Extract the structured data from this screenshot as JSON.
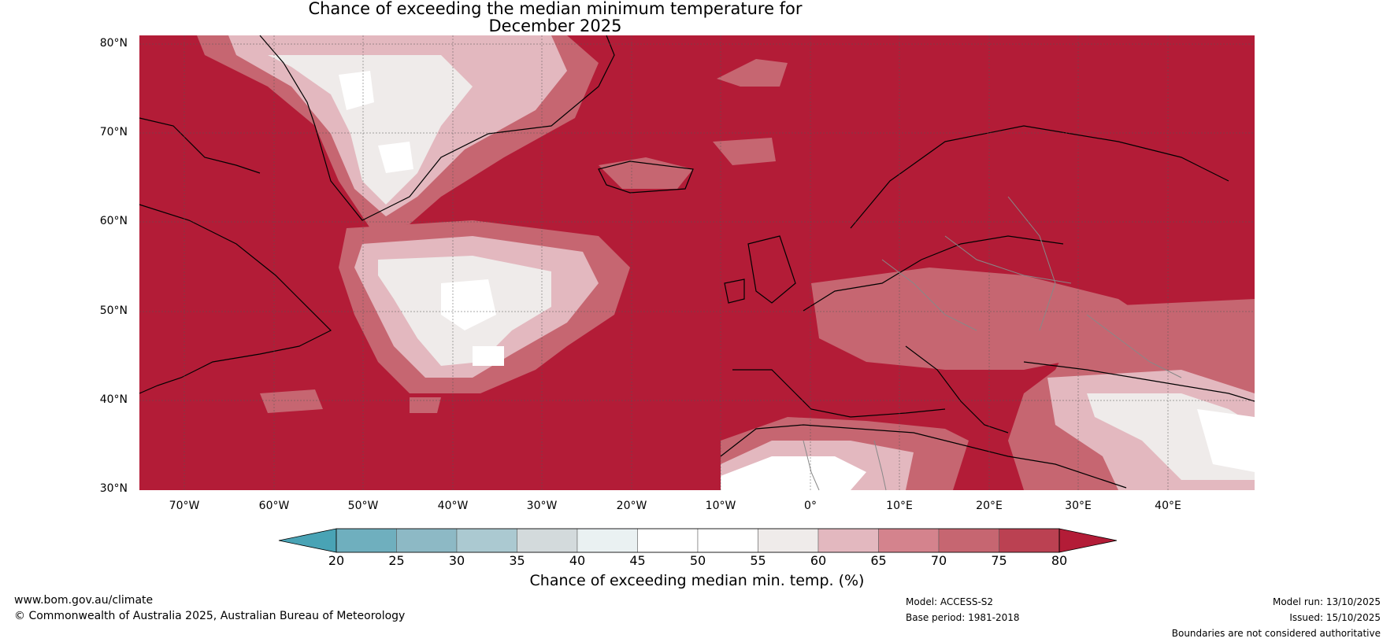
{
  "title_line1": "Chance of exceeding the median minimum temperature for",
  "title_line2": "December 2025",
  "lat_labels": [
    "80°N",
    "70°N",
    "60°N",
    "50°N",
    "40°N",
    "30°N"
  ],
  "lon_labels": [
    "70°W",
    "60°W",
    "50°W",
    "40°W",
    "30°W",
    "20°W",
    "10°W",
    "0°",
    "10°E",
    "20°E",
    "30°E",
    "40°E"
  ],
  "colorbar": {
    "ticks": [
      "20",
      "25",
      "30",
      "35",
      "40",
      "45",
      "50",
      "55",
      "60",
      "65",
      "70",
      "75",
      "80"
    ],
    "title": "Chance of exceeding median min. temp. (%)",
    "colors": [
      "#49a3b5",
      "#6fafbe",
      "#8db9c5",
      "#abc9d1",
      "#d3dadc",
      "#eaf1f2",
      "#ffffff",
      "#ffffff",
      "#efebea",
      "#e3b8bf",
      "#d4838d",
      "#c66671",
      "#bb4152",
      "#b31c37"
    ]
  },
  "footer": {
    "url": "www.bom.gov.au/climate",
    "copyright": "© Commonwealth of Australia 2025, Australian Bureau of Meteorology",
    "model": "Model: ACCESS-S2",
    "base_period": "Base period: 1981-2018",
    "model_run": "Model run: 13/10/2025",
    "issued": "Issued: 15/10/2025",
    "disclaimer": "Boundaries are not considered authoritative"
  }
}
